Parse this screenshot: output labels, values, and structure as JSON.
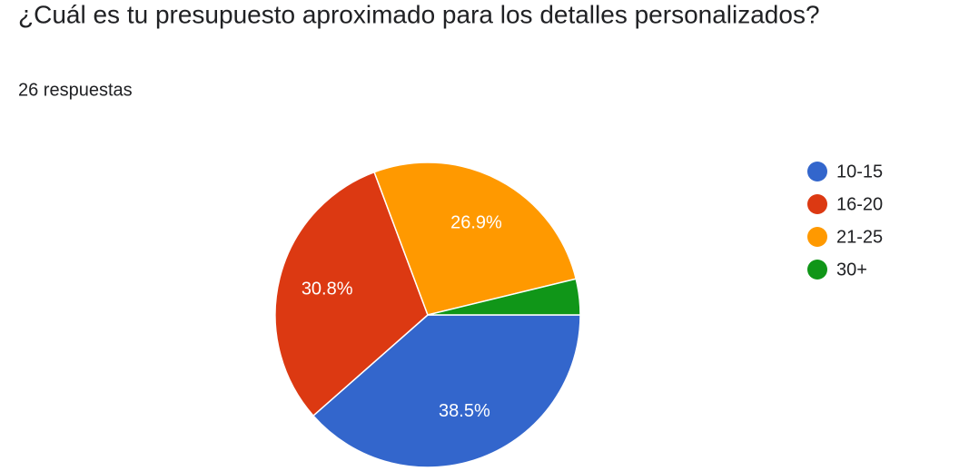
{
  "chart_data": {
    "type": "pie",
    "title": "¿Cuál es tu presupuesto aproximado para los detalles personalizados?",
    "subtitle": "26 respuestas",
    "categories": [
      "10-15",
      "16-20",
      "21-25",
      "30+"
    ],
    "values": [
      38.5,
      30.8,
      26.9,
      3.8
    ],
    "value_labels": [
      "38.5%",
      "30.8%",
      "26.9%",
      null
    ],
    "colors": [
      "#3366cc",
      "#dc3912",
      "#ff9900",
      "#109618"
    ],
    "legend": "right"
  }
}
